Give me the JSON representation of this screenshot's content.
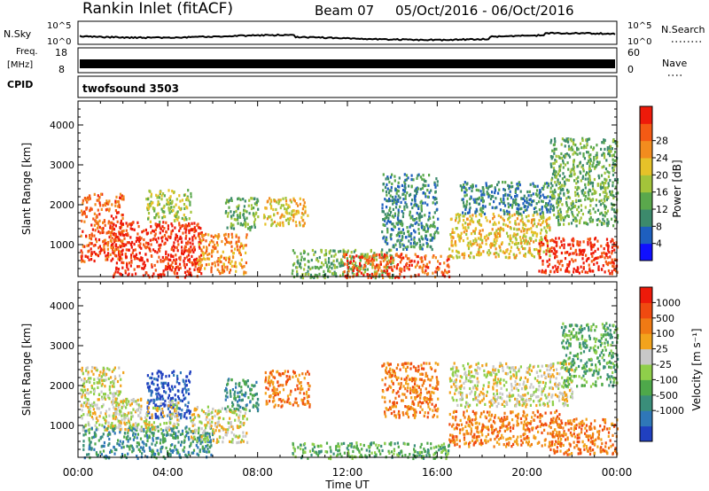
{
  "header": {
    "station": "Rankin Inlet (fitACF)",
    "beam": "Beam 07",
    "date_range": "05/Oct/2016 - 06/Oct/2016"
  },
  "status_panels": {
    "nsky_label": "N.Sky",
    "nsky_tick_top": "10^5",
    "nsky_tick_bottom": "10^0",
    "nsearch_label": "N.Search",
    "nsearch_tick_top": "10^5",
    "nsearch_tick_bottom": "10^0",
    "freq_label": "Freq.",
    "freq_unit": "[MHz]",
    "freq_tick_top": "18",
    "freq_tick_bottom": "8",
    "nave_label": "Nave",
    "nave_tick_top": "60",
    "nave_tick_bottom": "0",
    "cpid_label": "CPID",
    "cpid_value": "twofsound 3503"
  },
  "chart_data": [
    {
      "type": "heatmap",
      "name": "power",
      "ylabel": "Slant Range [km]",
      "ylim": [
        200,
        4600
      ],
      "yticks": [
        "1000",
        "2000",
        "3000",
        "4000"
      ],
      "xticks": [
        "00:00",
        "04:00",
        "08:00",
        "12:00",
        "16:00",
        "20:00",
        "00:00"
      ],
      "xlim_hours": [
        0,
        24
      ],
      "colorbar": {
        "label": "Power [dB]",
        "ticks": [
          "4",
          "8",
          "12",
          "16",
          "20",
          "24",
          "28"
        ],
        "colors": [
          "#1010ff",
          "#1e5fbf",
          "#3c8a6c",
          "#5aa84c",
          "#a3c43a",
          "#e6c229",
          "#f28c1e",
          "#f45a14",
          "#ee1a0a"
        ]
      },
      "regions": [
        {
          "t0": 0.1,
          "t1": 2.0,
          "r0": 600,
          "r1": 2300,
          "level": 7
        },
        {
          "t0": 1.5,
          "t1": 5.5,
          "r0": 200,
          "r1": 1600,
          "level": 8
        },
        {
          "t0": 3.0,
          "t1": 5.0,
          "r0": 1600,
          "r1": 2400,
          "level": 4
        },
        {
          "t0": 5.3,
          "t1": 7.5,
          "r0": 300,
          "r1": 1300,
          "level": 6
        },
        {
          "t0": 6.5,
          "t1": 8.0,
          "r0": 1400,
          "r1": 2200,
          "level": 3
        },
        {
          "t0": 8.2,
          "t1": 10.2,
          "r0": 1500,
          "r1": 2200,
          "level": 5
        },
        {
          "t0": 9.5,
          "t1": 14.0,
          "r0": 200,
          "r1": 900,
          "level": 3
        },
        {
          "t0": 11.8,
          "t1": 16.5,
          "r0": 200,
          "r1": 800,
          "level": 7
        },
        {
          "t0": 13.5,
          "t1": 16.0,
          "r0": 900,
          "r1": 2800,
          "level": 2
        },
        {
          "t0": 16.5,
          "t1": 21.0,
          "r0": 700,
          "r1": 1800,
          "level": 5
        },
        {
          "t0": 17.0,
          "t1": 21.5,
          "r0": 1800,
          "r1": 2600,
          "level": 2
        },
        {
          "t0": 20.5,
          "t1": 24.0,
          "r0": 300,
          "r1": 1200,
          "level": 8
        },
        {
          "t0": 21.0,
          "t1": 24.0,
          "r0": 1500,
          "r1": 3700,
          "level": 3
        }
      ]
    },
    {
      "type": "heatmap",
      "name": "velocity",
      "ylabel": "Slant Range [km]",
      "ylim": [
        200,
        4600
      ],
      "yticks": [
        "1000",
        "2000",
        "3000",
        "4000"
      ],
      "xticks": [
        "00:00",
        "04:00",
        "08:00",
        "12:00",
        "16:00",
        "20:00",
        "00:00"
      ],
      "xlim_hours": [
        0,
        24
      ],
      "xlabel": "Time UT",
      "colorbar": {
        "label": "Velocity [m s⁻¹]",
        "ticks": [
          "1000",
          "500",
          "100",
          "25",
          "-25",
          "-100",
          "-500",
          "-1000"
        ],
        "colors": [
          "#2040c0",
          "#2f77b8",
          "#3a8e7a",
          "#4ea84a",
          "#8fcf4a",
          "#c8c8c8",
          "#f2a31c",
          "#f07a14",
          "#f04a10",
          "#ee1a0a"
        ]
      },
      "regions": [
        {
          "t0": 0.1,
          "t1": 2.0,
          "r0": 900,
          "r1": 2500,
          "level": 5
        },
        {
          "t0": 0.2,
          "t1": 6.0,
          "r0": 200,
          "r1": 1000,
          "level": 2
        },
        {
          "t0": 3.0,
          "t1": 5.0,
          "r0": 1200,
          "r1": 2400,
          "level": 0
        },
        {
          "t0": 1.5,
          "t1": 4.5,
          "r0": 900,
          "r1": 1700,
          "level": 5
        },
        {
          "t0": 5.0,
          "t1": 7.5,
          "r0": 600,
          "r1": 1500,
          "level": 5
        },
        {
          "t0": 6.5,
          "t1": 8.0,
          "r0": 1400,
          "r1": 2200,
          "level": 2
        },
        {
          "t0": 8.3,
          "t1": 10.3,
          "r0": 1500,
          "r1": 2400,
          "level": 7
        },
        {
          "t0": 9.5,
          "t1": 16.5,
          "r0": 200,
          "r1": 600,
          "level": 3
        },
        {
          "t0": 13.5,
          "t1": 16.0,
          "r0": 1200,
          "r1": 2600,
          "level": 7
        },
        {
          "t0": 16.5,
          "t1": 21.5,
          "r0": 500,
          "r1": 1400,
          "level": 7
        },
        {
          "t0": 16.5,
          "t1": 22.0,
          "r0": 1500,
          "r1": 2600,
          "level": 5
        },
        {
          "t0": 21.0,
          "t1": 24.0,
          "r0": 300,
          "r1": 1200,
          "level": 7
        },
        {
          "t0": 21.5,
          "t1": 24.0,
          "r0": 2000,
          "r1": 3600,
          "level": 3
        }
      ]
    }
  ]
}
